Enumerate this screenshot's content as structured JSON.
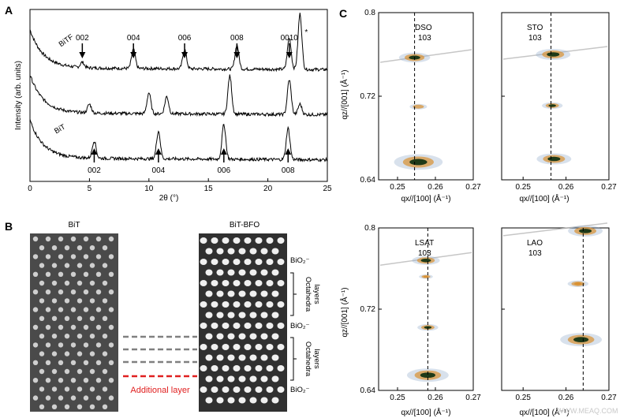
{
  "panels": {
    "A": "A",
    "B": "B",
    "C": "C"
  },
  "panel_b": {
    "left_title": "BiT",
    "right_title": "BiT-BFO",
    "labels": [
      "BiO₂⁻",
      "BiO₂⁻",
      "BiO₂⁻"
    ],
    "octahedra_1": [
      "Octahedra",
      "layers"
    ],
    "octahedra_2": [
      "Octahedra",
      "layers"
    ],
    "additional_layer": "Additional layer"
  },
  "watermark": "WWW.MEAQ.COM",
  "colors": {
    "red_dash": "#e02020",
    "gray_dash": "#808080",
    "peak_dark": "#1e3a18",
    "peak_orange": "#d99030",
    "peak_blue": "#8fa8c8"
  },
  "chart_data": [
    {
      "type": "line",
      "panel": "A",
      "xlabel": "2θ (°)",
      "ylabel": "Intensity (arb. units)",
      "xlim": [
        0,
        25
      ],
      "xticks": [
        0,
        5,
        10,
        15,
        20,
        25
      ],
      "series": [
        {
          "name": "BiTF",
          "baseline": 3.0,
          "peaks": [
            [
              4.4,
              0.15
            ],
            [
              8.7,
              0.55
            ],
            [
              13.0,
              0.55
            ],
            [
              17.4,
              0.7
            ],
            [
              21.8,
              0.9
            ],
            [
              22.7,
              1.6
            ]
          ]
        },
        {
          "name": "",
          "baseline": 1.7,
          "peaks": [
            [
              5.0,
              0.25
            ],
            [
              10.0,
              0.6
            ],
            [
              11.5,
              0.5
            ],
            [
              16.8,
              1.1
            ],
            [
              21.8,
              1.0
            ],
            [
              22.7,
              0.3
            ]
          ]
        },
        {
          "name": "BiT",
          "baseline": 0.4,
          "peaks": [
            [
              5.4,
              0.5
            ],
            [
              10.8,
              0.8
            ],
            [
              16.3,
              1.0
            ],
            [
              21.7,
              0.9
            ]
          ]
        }
      ],
      "top_annotations": [
        "002",
        "004",
        "006",
        "008",
        "0010"
      ],
      "top_annotation_x": [
        4.4,
        8.7,
        13.0,
        17.4,
        21.8
      ],
      "bottom_annotations": [
        "002",
        "004",
        "006",
        "008"
      ],
      "bottom_annotation_x": [
        5.4,
        10.8,
        16.3,
        21.7
      ],
      "star": "*"
    },
    {
      "type": "scatter",
      "panel": "C",
      "subplots": [
        {
          "name": "DSO",
          "reflection": "103",
          "xlim": [
            0.245,
            0.27
          ],
          "ylim": [
            0.64,
            0.8
          ],
          "xticks": [
            "0.25",
            "0.26",
            "0.27"
          ],
          "yticks": [
            "0.64",
            "0.72",
            "0.8"
          ],
          "dashed_x": 0.2545,
          "spots": [
            [
              0.2545,
              0.757,
              0.9,
              "dark"
            ],
            [
              0.2555,
              0.657,
              1.4,
              "dark"
            ],
            [
              0.2555,
              0.71,
              0.5,
              "blue"
            ]
          ]
        },
        {
          "name": "STO",
          "reflection": "103",
          "xlim": [
            0.245,
            0.27
          ],
          "ylim": [
            0.64,
            0.8
          ],
          "xticks": [
            "0.25",
            "0.26",
            "0.27"
          ],
          "yticks": [],
          "dashed_x": 0.2565,
          "spots": [
            [
              0.257,
              0.76,
              1.0,
              "dark"
            ],
            [
              0.2568,
              0.711,
              0.6,
              "dark"
            ],
            [
              0.2572,
              0.66,
              1.0,
              "dark"
            ]
          ]
        },
        {
          "name": "LSAT",
          "reflection": "103",
          "xlim": [
            0.245,
            0.27
          ],
          "ylim": [
            0.64,
            0.8
          ],
          "xticks": [
            "0.25",
            "0.26",
            "0.27"
          ],
          "yticks": [
            "0.64",
            "0.72",
            "0.8"
          ],
          "dashed_x": 0.258,
          "spots": [
            [
              0.2575,
              0.768,
              0.8,
              "dark"
            ],
            [
              0.2575,
              0.752,
              0.4,
              "orange"
            ],
            [
              0.258,
              0.702,
              0.6,
              "dark"
            ],
            [
              0.258,
              0.655,
              1.2,
              "dark"
            ]
          ]
        },
        {
          "name": "LAO",
          "reflection": "103",
          "xlim": [
            0.245,
            0.27
          ],
          "ylim": [
            0.64,
            0.8
          ],
          "xticks": [
            "0.25",
            "0.26",
            "0.27"
          ],
          "yticks": [],
          "dashed_x": 0.264,
          "spots": [
            [
              0.2645,
              0.797,
              1.0,
              "dark"
            ],
            [
              0.2628,
              0.745,
              0.6,
              "orange"
            ],
            [
              0.2635,
              0.69,
              1.2,
              "dark"
            ]
          ]
        }
      ],
      "xlabel": "qx//[100] (Å⁻¹)",
      "ylabel": "qz//[001] (Å⁻¹)"
    }
  ]
}
